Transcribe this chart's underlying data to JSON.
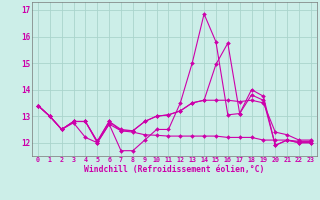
{
  "xlabel": "Windchill (Refroidissement éolien,°C)",
  "background_color": "#cceee8",
  "grid_color": "#aad4cc",
  "line_color": "#cc00aa",
  "xlim": [
    -0.5,
    23.5
  ],
  "ylim": [
    11.5,
    17.3
  ],
  "yticks": [
    12,
    13,
    14,
    15,
    16,
    17
  ],
  "xticks": [
    0,
    1,
    2,
    3,
    4,
    5,
    6,
    7,
    8,
    9,
    10,
    11,
    12,
    13,
    14,
    15,
    16,
    17,
    18,
    19,
    20,
    21,
    22,
    23
  ],
  "series": [
    [
      13.4,
      13.0,
      12.5,
      12.8,
      12.8,
      12.0,
      12.7,
      11.7,
      11.7,
      12.1,
      12.5,
      12.5,
      13.5,
      15.0,
      16.85,
      15.8,
      13.05,
      13.1,
      13.8,
      13.6,
      11.9,
      12.1,
      12.0,
      12.0
    ],
    [
      13.4,
      13.0,
      12.5,
      12.8,
      12.8,
      12.05,
      12.8,
      12.5,
      12.45,
      12.8,
      13.0,
      13.05,
      13.2,
      13.5,
      13.6,
      13.6,
      13.6,
      13.55,
      13.6,
      13.5,
      12.4,
      12.3,
      12.1,
      12.1
    ],
    [
      13.4,
      13.0,
      12.5,
      12.75,
      12.2,
      12.0,
      12.7,
      12.45,
      12.4,
      12.3,
      12.28,
      12.25,
      12.25,
      12.25,
      12.25,
      12.25,
      12.2,
      12.2,
      12.2,
      12.1,
      12.1,
      12.1,
      12.0,
      12.0
    ],
    [
      13.4,
      13.0,
      12.5,
      12.8,
      12.8,
      12.05,
      12.8,
      12.45,
      12.45,
      12.8,
      13.0,
      13.05,
      13.2,
      13.5,
      13.6,
      14.95,
      15.75,
      13.1,
      14.0,
      13.75,
      11.9,
      12.1,
      12.05,
      12.05
    ]
  ]
}
